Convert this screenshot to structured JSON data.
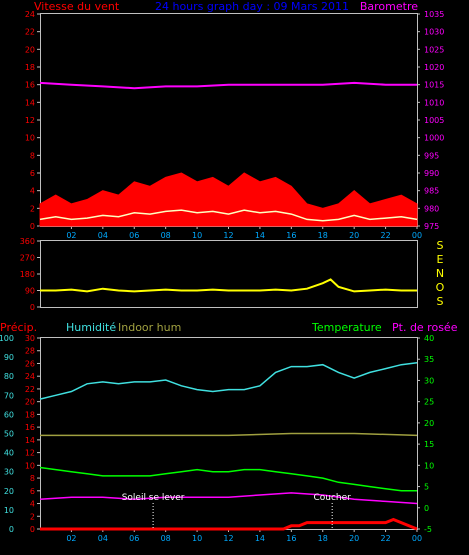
{
  "header": {
    "wind_label": "Vitesse du vent",
    "title": "24 hours graph day : 09 Mars 2011",
    "baro_label": "Barometre"
  },
  "colors": {
    "frame": "#c0c0c0",
    "wind": "#ff0000",
    "gust": "#ffffff",
    "avg": "#ffffc0",
    "baro": "#ff00ff",
    "direction": "#ffff00",
    "humidity": "#40e0e0",
    "indoor_hum": "#a0a040",
    "temperature": "#00ff00",
    "dewpoint": "#ff00ff",
    "precip": "#ff0000",
    "title": "#0000ff",
    "axis_left": "#ff0000",
    "axis_humidity": "#40e0e0",
    "axis_temp": "#00ff00",
    "axis_bottom": "#00aaff"
  },
  "x_ticks": [
    "02",
    "04",
    "06",
    "08",
    "10",
    "12",
    "14",
    "16",
    "18",
    "20",
    "22",
    "00"
  ],
  "wind_chart": {
    "left_ticks": [
      "0",
      "2",
      "4",
      "6",
      "8",
      "10",
      "12",
      "14",
      "16",
      "18",
      "20",
      "22",
      "24"
    ],
    "right_ticks": [
      "975",
      "980",
      "985",
      "990",
      "995",
      "1000",
      "1005",
      "1010",
      "1015",
      "1020",
      "1025",
      "1030",
      "1035"
    ]
  },
  "dir_chart": {
    "left_ticks": [
      "0",
      "90",
      "180",
      "270",
      "360"
    ],
    "letters": [
      "S",
      "E",
      "N",
      "O",
      "S"
    ]
  },
  "bottom_chart": {
    "labels": {
      "precip": "Précip.",
      "humidity": "Humidité",
      "indoor_hum": "Indoor hum",
      "temperature": "Temperature",
      "dewpoint": "Pt. de rosée"
    },
    "hum_ticks": [
      "0",
      "10",
      "20",
      "30",
      "40",
      "50",
      "60",
      "70",
      "80",
      "90",
      "100"
    ],
    "precip_ticks": [
      "0",
      "2",
      "4",
      "6",
      "8",
      "10",
      "12",
      "14",
      "16",
      "18",
      "20",
      "22",
      "24",
      "26",
      "28",
      "30"
    ],
    "temp_ticks": [
      "-5",
      "0",
      "5",
      "10",
      "15",
      "20",
      "25",
      "30",
      "35",
      "40"
    ],
    "sunrise_label": "Soleil se lever",
    "sunset_label": "Coucher"
  },
  "chart_data": [
    {
      "type": "line",
      "title": "24 hours graph day : 09 Mars 2011",
      "x_unit": "hour",
      "xlim": [
        0,
        24
      ],
      "series": [
        {
          "name": "Vitesse du vent",
          "axis": "left",
          "ylim": [
            0,
            24
          ],
          "x": [
            0,
            1,
            2,
            3,
            4,
            5,
            6,
            7,
            8,
            9,
            10,
            11,
            12,
            13,
            14,
            15,
            16,
            17,
            18,
            19,
            20,
            21,
            22,
            23,
            24
          ],
          "y": [
            2.5,
            3.5,
            2.5,
            3,
            4,
            3.5,
            5,
            4.5,
            5.5,
            6,
            5,
            5.5,
            4.5,
            6,
            5,
            5.5,
            4.5,
            2.5,
            2,
            2.5,
            4,
            2.5,
            3,
            3.5,
            2.5
          ]
        },
        {
          "name": "Barometre",
          "axis": "right",
          "ylim": [
            975,
            1035
          ],
          "x": [
            0,
            2,
            4,
            6,
            8,
            10,
            12,
            14,
            16,
            18,
            20,
            22,
            24
          ],
          "y": [
            1015.5,
            1015,
            1014.5,
            1014,
            1014.5,
            1014.5,
            1015,
            1015,
            1015,
            1015,
            1015.5,
            1015,
            1015
          ]
        }
      ]
    },
    {
      "type": "line",
      "x_unit": "hour",
      "xlim": [
        0,
        24
      ],
      "ylim": [
        0,
        360
      ],
      "series": [
        {
          "x": [
            0,
            1,
            2,
            3,
            4,
            5,
            6,
            7,
            8,
            9,
            10,
            11,
            12,
            13,
            14,
            15,
            16,
            17,
            18,
            18.5,
            19,
            20,
            21,
            22,
            23,
            24
          ],
          "y": [
            90,
            90,
            95,
            85,
            100,
            90,
            85,
            90,
            95,
            90,
            90,
            95,
            90,
            90,
            90,
            95,
            90,
            100,
            130,
            150,
            110,
            85,
            90,
            95,
            90,
            90
          ]
        }
      ]
    },
    {
      "type": "line",
      "x_unit": "hour",
      "xlim": [
        0,
        24
      ],
      "series": [
        {
          "name": "Humidité",
          "axis": "humidity",
          "ylim": [
            0,
            100
          ],
          "x": [
            0,
            1,
            2,
            3,
            4,
            5,
            6,
            7,
            8,
            9,
            10,
            11,
            12,
            13,
            14,
            15,
            16,
            17,
            18,
            19,
            20,
            21,
            22,
            23,
            24
          ],
          "y": [
            68,
            70,
            72,
            76,
            77,
            76,
            77,
            77,
            78,
            75,
            73,
            72,
            73,
            73,
            75,
            82,
            85,
            85,
            86,
            82,
            79,
            82,
            84,
            86,
            87
          ]
        },
        {
          "name": "Indoor hum",
          "axis": "humidity",
          "ylim": [
            0,
            100
          ],
          "x": [
            0,
            4,
            8,
            12,
            16,
            20,
            24
          ],
          "y": [
            49,
            49,
            49,
            49,
            50,
            50,
            49
          ]
        },
        {
          "name": "Temperature",
          "axis": "temp",
          "ylim": [
            -5,
            40
          ],
          "x": [
            0,
            1,
            2,
            3,
            4,
            5,
            6,
            7,
            8,
            9,
            10,
            11,
            12,
            13,
            14,
            15,
            16,
            17,
            18,
            19,
            20,
            21,
            22,
            23,
            24
          ],
          "y": [
            9.5,
            9,
            8.5,
            8,
            7.5,
            7.5,
            7.5,
            7.5,
            8,
            8.5,
            9,
            8.5,
            8.5,
            9,
            9,
            8.5,
            8,
            7.5,
            7,
            6,
            5.5,
            5,
            4.5,
            4,
            4
          ]
        },
        {
          "name": "Pt. de rosée",
          "axis": "temp",
          "ylim": [
            -5,
            40
          ],
          "x": [
            0,
            2,
            4,
            6,
            8,
            10,
            12,
            14,
            16,
            18,
            20,
            22,
            24
          ],
          "y": [
            2,
            2.5,
            2.5,
            2,
            2.5,
            2.5,
            2.5,
            3,
            3.5,
            3,
            2,
            1.5,
            1
          ]
        },
        {
          "name": "Précip.",
          "axis": "precip",
          "ylim": [
            0,
            30
          ],
          "x": [
            0,
            15.5,
            16,
            16.5,
            17,
            22,
            22.5,
            24
          ],
          "y": [
            0,
            0,
            0.5,
            0.5,
            1,
            1,
            1.5,
            0
          ]
        }
      ],
      "annotations": [
        {
          "label": "Soleil se lever",
          "x": 7.2
        },
        {
          "label": "Coucher",
          "x": 18.6
        }
      ]
    }
  ]
}
